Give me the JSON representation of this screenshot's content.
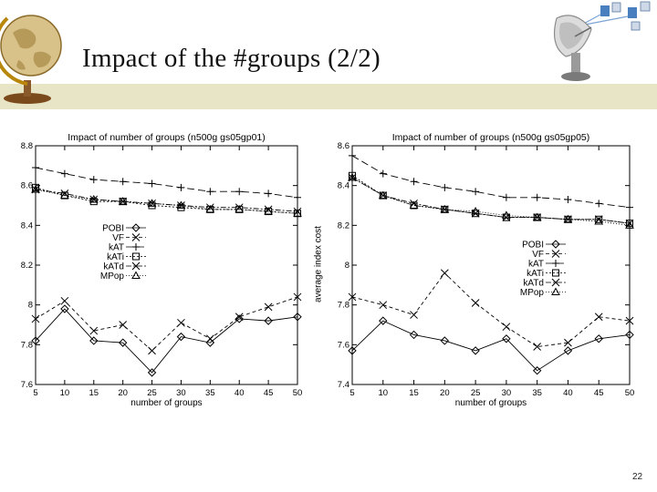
{
  "slide": {
    "title": "Impact of the #groups (2/2)",
    "page_number": "22",
    "accent_band_color": "#e8e5c6"
  },
  "chart_data": [
    {
      "type": "line",
      "title": "Impact of number of groups (n500g  gs05gp01)",
      "xlabel": "number of groups",
      "ylabel": "",
      "x": [
        5,
        10,
        15,
        20,
        25,
        30,
        35,
        40,
        45,
        50
      ],
      "xlim": [
        5,
        50
      ],
      "ylim": [
        7.6,
        8.8
      ],
      "yticks": [
        "7.6",
        "7.8",
        "8",
        "8.2",
        "8.4",
        "8.6",
        "8.8"
      ],
      "grid": false,
      "legend_position": "middle-left",
      "series": [
        {
          "name": "POBI",
          "marker": "diamond",
          "dash": "",
          "values": [
            7.82,
            7.98,
            7.82,
            7.81,
            7.66,
            7.84,
            7.81,
            7.93,
            7.92,
            7.94
          ]
        },
        {
          "name": "VF",
          "marker": "x",
          "dash": "4 3",
          "values": [
            7.93,
            8.02,
            7.87,
            7.9,
            7.77,
            7.91,
            7.83,
            7.94,
            7.99,
            8.04
          ]
        },
        {
          "name": "kAT",
          "marker": "plus",
          "dash": "8 4",
          "values": [
            8.69,
            8.66,
            8.63,
            8.62,
            8.61,
            8.59,
            8.57,
            8.57,
            8.56,
            8.54
          ]
        },
        {
          "name": "kATi",
          "marker": "square",
          "dash": "2 2",
          "values": [
            8.59,
            8.55,
            8.52,
            8.52,
            8.5,
            8.49,
            8.48,
            8.48,
            8.47,
            8.46
          ]
        },
        {
          "name": "kATd",
          "marker": "x",
          "dash": "6 2 2 2",
          "values": [
            8.58,
            8.56,
            8.53,
            8.52,
            8.51,
            8.5,
            8.49,
            8.49,
            8.48,
            8.47
          ]
        },
        {
          "name": "MPop",
          "marker": "triangle",
          "dash": "1 2",
          "values": [
            8.58,
            8.55,
            8.53,
            8.52,
            8.51,
            8.5,
            8.48,
            8.48,
            8.47,
            8.46
          ]
        }
      ]
    },
    {
      "type": "line",
      "title": "Impact of number of groups (n500g  gs05gp05)",
      "xlabel": "number of groups",
      "ylabel": "average index cost",
      "x": [
        5,
        10,
        15,
        20,
        25,
        30,
        35,
        40,
        45,
        50
      ],
      "xlim": [
        5,
        50
      ],
      "ylim": [
        7.4,
        8.6
      ],
      "yticks": [
        "7.4",
        "7.6",
        "7.8",
        "8",
        "8.2",
        "8.4",
        "8.6"
      ],
      "grid": false,
      "legend_position": "middle-right",
      "series": [
        {
          "name": "POBI",
          "marker": "diamond",
          "dash": "",
          "values": [
            7.57,
            7.72,
            7.65,
            7.62,
            7.57,
            7.63,
            7.47,
            7.57,
            7.63,
            7.65
          ]
        },
        {
          "name": "VF",
          "marker": "x",
          "dash": "4 3",
          "values": [
            7.84,
            7.8,
            7.75,
            7.96,
            7.81,
            7.69,
            7.59,
            7.61,
            7.74,
            7.72
          ]
        },
        {
          "name": "kAT",
          "marker": "plus",
          "dash": "8 4",
          "values": [
            8.55,
            8.46,
            8.42,
            8.39,
            8.37,
            8.34,
            8.34,
            8.33,
            8.31,
            8.29
          ]
        },
        {
          "name": "kATi",
          "marker": "square",
          "dash": "2 2",
          "values": [
            8.45,
            8.35,
            8.3,
            8.28,
            8.26,
            8.24,
            8.24,
            8.23,
            8.23,
            8.21
          ]
        },
        {
          "name": "kATd",
          "marker": "x",
          "dash": "6 2 2 2",
          "values": [
            8.44,
            8.35,
            8.31,
            8.28,
            8.26,
            8.24,
            8.24,
            8.23,
            8.23,
            8.21
          ]
        },
        {
          "name": "MPop",
          "marker": "triangle",
          "dash": "1 2",
          "values": [
            8.44,
            8.35,
            8.3,
            8.28,
            8.27,
            8.25,
            8.24,
            8.23,
            8.22,
            8.2
          ]
        }
      ]
    }
  ]
}
